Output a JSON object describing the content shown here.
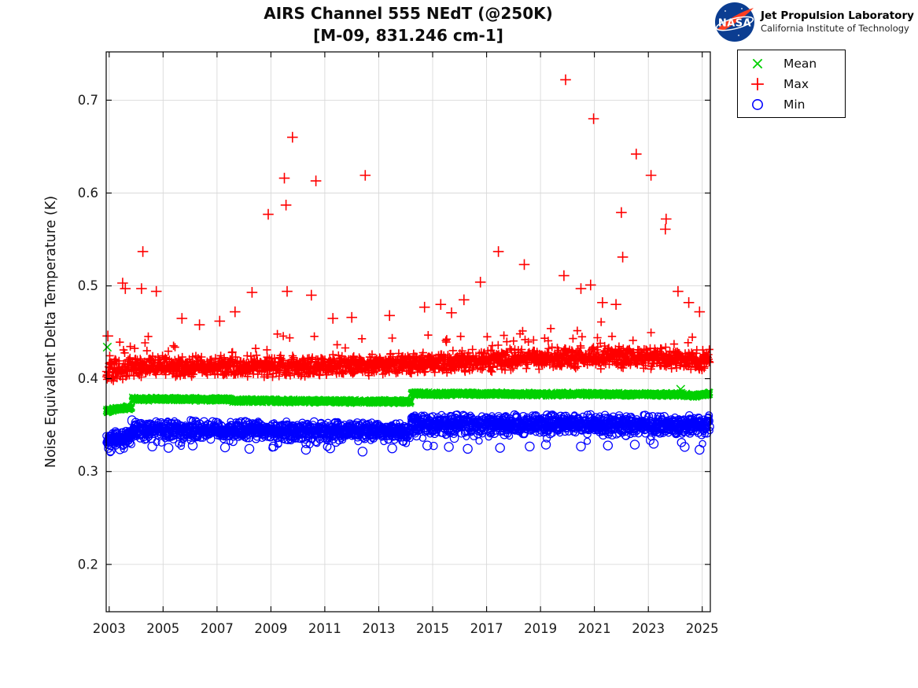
{
  "header": {
    "title": "AIRS Channel 555 NEdT (@250K)",
    "subtitle": "[M-09, 831.246 cm-1]"
  },
  "logo": {
    "nasa_text": "NASA",
    "org": "Jet Propulsion Laboratory",
    "institution": "California Institute of Technology",
    "nasa_blue": "#0b3d91",
    "nasa_red": "#fc3d21"
  },
  "legend": {
    "entries": [
      {
        "label": "Mean",
        "marker": "x",
        "color": "#00d000"
      },
      {
        "label": "Max",
        "marker": "+",
        "color": "#ff0000"
      },
      {
        "label": "Min",
        "marker": "o",
        "color": "#0000ff"
      }
    ]
  },
  "chart_data": {
    "type": "scatter",
    "title": "AIRS Channel 555 NEdT (@250K)",
    "subtitle": "[M-09, 831.246 cm-1]",
    "xlabel": "",
    "ylabel": "Noise Equivalent Delta Temperature (K)",
    "xlim": [
      2002.89,
      2025.3
    ],
    "ylim": [
      0.149,
      0.752
    ],
    "x_ticks": [
      2003,
      2005,
      2007,
      2009,
      2011,
      2013,
      2015,
      2017,
      2019,
      2021,
      2023,
      2025
    ],
    "y_ticks": [
      0.2,
      0.3,
      0.4,
      0.5,
      0.6,
      0.7
    ],
    "grid": true,
    "grid_color": "#d9d9d9",
    "axis_color": "#000000",
    "tick_label_color": "#1a1a1a",
    "series": [
      {
        "name": "Mean",
        "marker": "x",
        "color": "#00d000",
        "band_segments": [
          [
            2002.89,
            2003.85,
            0.3655,
            0.3695,
            0.003
          ],
          [
            2003.85,
            2007.5,
            0.3782,
            0.3776,
            0.0026
          ],
          [
            2007.5,
            2014.2,
            0.3764,
            0.3752,
            0.0026
          ],
          [
            2014.2,
            2024.3,
            0.3838,
            0.383,
            0.0026
          ],
          [
            2024.3,
            2024.75,
            0.3828,
            0.3812,
            0.0024
          ],
          [
            2024.75,
            2025.28,
            0.3815,
            0.3843,
            0.0024
          ]
        ],
        "fringe": [],
        "outliers": [
          [
            2002.93,
            0.434
          ],
          [
            2024.2,
            0.3886
          ]
        ]
      },
      {
        "name": "Max",
        "marker": "+",
        "color": "#ff0000",
        "band_segments": [
          [
            2002.89,
            2003.05,
            0.406,
            0.408,
            0.019
          ],
          [
            2003.05,
            2003.85,
            0.4085,
            0.4105,
            0.013
          ],
          [
            2003.85,
            2007.5,
            0.4125,
            0.414,
            0.0125
          ],
          [
            2007.5,
            2014.2,
            0.4128,
            0.4155,
            0.0125
          ],
          [
            2014.2,
            2018.0,
            0.4165,
            0.4205,
            0.013
          ],
          [
            2018.0,
            2022.0,
            0.421,
            0.4235,
            0.0135
          ],
          [
            2022.0,
            2025.28,
            0.4235,
            0.421,
            0.0135
          ]
        ],
        "fringe": [
          {
            "p": 0.05,
            "extra": 0.03
          },
          {
            "p": 0.006,
            "extra": 0.05
          }
        ],
        "outliers": [
          [
            2002.95,
            0.446
          ],
          [
            2003.5,
            0.503
          ],
          [
            2003.6,
            0.497
          ],
          [
            2004.2,
            0.497
          ],
          [
            2004.25,
            0.537
          ],
          [
            2004.75,
            0.494
          ],
          [
            2005.7,
            0.465
          ],
          [
            2006.35,
            0.458
          ],
          [
            2007.1,
            0.462
          ],
          [
            2007.67,
            0.472
          ],
          [
            2008.3,
            0.493
          ],
          [
            2008.9,
            0.577
          ],
          [
            2009.5,
            0.616
          ],
          [
            2009.56,
            0.587
          ],
          [
            2009.6,
            0.494
          ],
          [
            2009.8,
            0.66
          ],
          [
            2010.5,
            0.49
          ],
          [
            2010.67,
            0.613
          ],
          [
            2011.3,
            0.465
          ],
          [
            2012.0,
            0.466
          ],
          [
            2012.5,
            0.619
          ],
          [
            2013.4,
            0.468
          ],
          [
            2014.7,
            0.477
          ],
          [
            2015.3,
            0.48
          ],
          [
            2015.7,
            0.471
          ],
          [
            2016.16,
            0.485
          ],
          [
            2016.77,
            0.504
          ],
          [
            2017.44,
            0.537
          ],
          [
            2018.4,
            0.523
          ],
          [
            2019.87,
            0.511
          ],
          [
            2019.93,
            0.722
          ],
          [
            2020.5,
            0.497
          ],
          [
            2020.86,
            0.501
          ],
          [
            2020.97,
            0.68
          ],
          [
            2021.3,
            0.482
          ],
          [
            2021.8,
            0.48
          ],
          [
            2022.0,
            0.579
          ],
          [
            2022.05,
            0.531
          ],
          [
            2022.55,
            0.642
          ],
          [
            2023.1,
            0.619
          ],
          [
            2023.63,
            0.561
          ],
          [
            2023.66,
            0.572
          ],
          [
            2024.1,
            0.494
          ],
          [
            2024.5,
            0.482
          ],
          [
            2024.9,
            0.472
          ]
        ]
      },
      {
        "name": "Min",
        "marker": "o",
        "color": "#0000ff",
        "band_segments": [
          [
            2002.89,
            2003.1,
            0.3315,
            0.334,
            0.0095
          ],
          [
            2003.1,
            2003.85,
            0.3345,
            0.3365,
            0.009
          ],
          [
            2003.85,
            2007.5,
            0.3458,
            0.3448,
            0.011
          ],
          [
            2007.5,
            2014.2,
            0.3444,
            0.3432,
            0.011
          ],
          [
            2014.2,
            2025.28,
            0.351,
            0.3503,
            0.0115
          ]
        ],
        "fringe": [
          {
            "p": 0.06,
            "extra": -0.014
          }
        ],
        "outliers": [
          [
            2003.05,
            0.3225
          ],
          [
            2003.4,
            0.324
          ],
          [
            2004.6,
            0.327
          ],
          [
            2005.2,
            0.3255
          ],
          [
            2006.1,
            0.328
          ],
          [
            2007.3,
            0.326
          ],
          [
            2008.2,
            0.3245
          ],
          [
            2009.1,
            0.327
          ],
          [
            2010.3,
            0.3235
          ],
          [
            2011.2,
            0.325
          ],
          [
            2012.4,
            0.3215
          ],
          [
            2013.5,
            0.325
          ],
          [
            2014.8,
            0.328
          ],
          [
            2015.6,
            0.3265
          ],
          [
            2016.3,
            0.3245
          ],
          [
            2017.5,
            0.3255
          ],
          [
            2018.6,
            0.327
          ],
          [
            2019.2,
            0.329
          ],
          [
            2020.5,
            0.327
          ],
          [
            2021.5,
            0.328
          ],
          [
            2022.5,
            0.329
          ],
          [
            2023.2,
            0.33
          ],
          [
            2024.35,
            0.3265
          ],
          [
            2024.9,
            0.3235
          ]
        ]
      }
    ]
  }
}
